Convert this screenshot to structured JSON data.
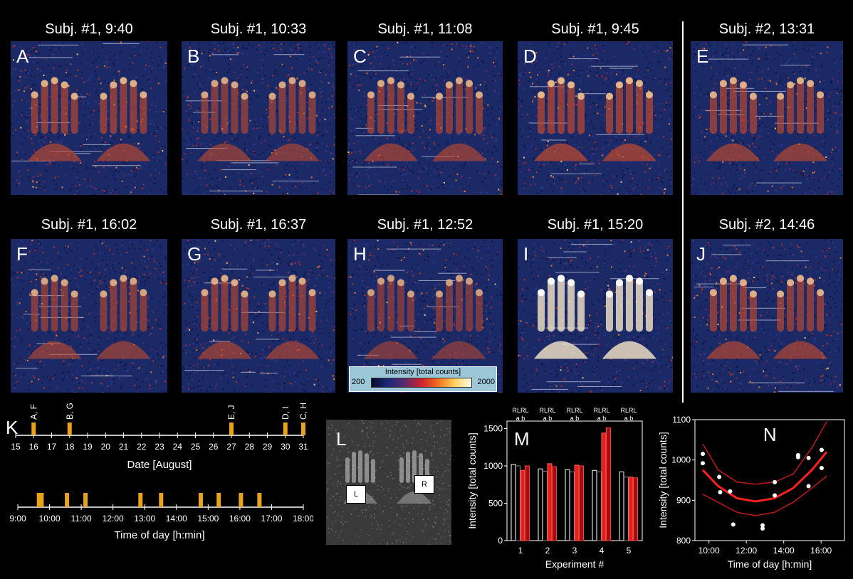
{
  "panels": [
    {
      "letter": "A",
      "title": "Subj. #1, 9:40"
    },
    {
      "letter": "B",
      "title": "Subj. #1, 10:33"
    },
    {
      "letter": "C",
      "title": "Subj. #1, 11:08"
    },
    {
      "letter": "D",
      "title": "Subj. #1, 9:45"
    },
    {
      "letter": "E",
      "title": "Subj. #2, 13:31"
    },
    {
      "letter": "F",
      "title": "Subj. #1, 16:02"
    },
    {
      "letter": "G",
      "title": "Subj. #1, 16:37"
    },
    {
      "letter": "H",
      "title": "Subj. #1, 12:52"
    },
    {
      "letter": "I",
      "title": "Subj. #1, 15:20"
    },
    {
      "letter": "J",
      "title": "Subj. #2, 14:46"
    }
  ],
  "colorbar": {
    "title": "Intensity [total counts]",
    "min": "200",
    "max": "2000"
  },
  "panel_K": {
    "letter": "K",
    "date_axis": {
      "label": "Date [August]",
      "ticks": [
        "15",
        "16",
        "17",
        "18",
        "19",
        "20",
        "21",
        "22",
        "23",
        "24",
        "25",
        "26",
        "27",
        "28",
        "29",
        "30",
        "31"
      ]
    },
    "date_markers": [
      {
        "day": 16,
        "label": "A, F"
      },
      {
        "day": 18,
        "label": "B, G"
      },
      {
        "day": 27,
        "label": "E, J"
      },
      {
        "day": 30,
        "label": "D, I"
      },
      {
        "day": 31,
        "label": "C, H"
      }
    ],
    "time_axis": {
      "label": "Time of day [h:min]",
      "ticks": [
        "9:00",
        "10:00",
        "11:00",
        "12:00",
        "13:00",
        "14:00",
        "15:00",
        "16:00",
        "17:00",
        "18:00"
      ]
    },
    "time_markers": [
      "9:40",
      "9:45",
      "10:33",
      "11:08",
      "12:52",
      "13:31",
      "14:46",
      "15:20",
      "16:02",
      "16:37"
    ]
  },
  "panel_L": {
    "letter": "L",
    "left_label": "L",
    "right_label": "R"
  },
  "colors": {
    "bar_gray": "#c0c0c0",
    "bar_red": "#e0201a",
    "bar_darkred": "#a01010",
    "marker": "#e8a21c",
    "fit": "#ff2020",
    "fit_band": "#c01818"
  },
  "chart_data": [
    {
      "id": "M",
      "type": "bar",
      "letter": "M",
      "categories": [
        "1",
        "2",
        "3",
        "4",
        "5"
      ],
      "xlabel": "Experiment #",
      "ylabel": "Intensity [total counts]",
      "ylim": [
        0,
        1600
      ],
      "yticks": [
        "0",
        "500",
        "1000",
        "1500"
      ],
      "group_header_top": "RLRL",
      "group_header_bottom": "a b",
      "series": [
        {
          "name": "R a",
          "values": [
            1020,
            960,
            950,
            940,
            920
          ]
        },
        {
          "name": "L a",
          "values": [
            1000,
            930,
            920,
            920,
            850
          ]
        },
        {
          "name": "R b",
          "values": [
            940,
            1030,
            1010,
            1440,
            850
          ]
        },
        {
          "name": "L b",
          "values": [
            1000,
            990,
            1000,
            1510,
            840
          ]
        }
      ]
    },
    {
      "id": "N",
      "type": "scatter",
      "letter": "N",
      "xlabel": "Time of day [h:min]",
      "ylabel": "Intensity [total counts]",
      "xticks": [
        "10:00",
        "12:00",
        "14:00",
        "16:00"
      ],
      "yticks": [
        "800",
        "900",
        "1000",
        "1100"
      ],
      "ylim": [
        800,
        1100
      ],
      "xlim": [
        9.25,
        17.25
      ],
      "points": [
        [
          9.67,
          1015
        ],
        [
          9.67,
          992
        ],
        [
          10.55,
          958
        ],
        [
          10.6,
          920
        ],
        [
          11.13,
          922
        ],
        [
          11.3,
          840
        ],
        [
          12.87,
          838
        ],
        [
          12.87,
          830
        ],
        [
          13.52,
          945
        ],
        [
          13.52,
          912
        ],
        [
          14.77,
          1012
        ],
        [
          14.77,
          1007
        ],
        [
          15.33,
          1005
        ],
        [
          15.33,
          935
        ],
        [
          16.03,
          1025
        ],
        [
          16.03,
          980
        ]
      ],
      "fit": [
        [
          9.67,
          975
        ],
        [
          10.5,
          935
        ],
        [
          11.5,
          905
        ],
        [
          12.5,
          897
        ],
        [
          13.5,
          905
        ],
        [
          14.5,
          930
        ],
        [
          15.5,
          975
        ],
        [
          16.3,
          1020
        ]
      ],
      "fit_upper": [
        [
          9.67,
          1040
        ],
        [
          10.5,
          975
        ],
        [
          11.5,
          945
        ],
        [
          12.5,
          940
        ],
        [
          13.5,
          945
        ],
        [
          14.5,
          965
        ],
        [
          15.5,
          1030
        ],
        [
          16.3,
          1095
        ]
      ],
      "fit_lower": [
        [
          9.67,
          915
        ],
        [
          10.5,
          895
        ],
        [
          11.5,
          870
        ],
        [
          12.5,
          862
        ],
        [
          13.5,
          870
        ],
        [
          14.5,
          895
        ],
        [
          15.5,
          930
        ],
        [
          16.3,
          960
        ]
      ]
    }
  ]
}
